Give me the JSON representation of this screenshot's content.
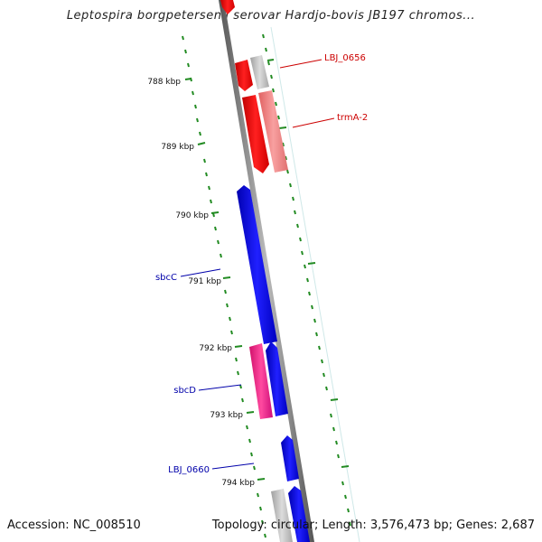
{
  "title": "Leptospira borgpetersenii serovar Hardjo-bovis JB197 chromos...",
  "accession": "Accession: NC_008510",
  "summary": "Topology: circular; Length: 3,576,473 bp; Genes: 2,687",
  "colors": {
    "backbone": "#888888",
    "tick": "#228B22",
    "gene_red": "#FF0000",
    "gene_light_red": "#F08080",
    "gene_blue": "#0000FF",
    "gene_pink": "#FF1493",
    "gene_gray": "#BBBBBB",
    "label_red": "#CC0000",
    "label_blue": "#0000AA"
  },
  "scale_labels": [
    "788 kbp",
    "789 kbp",
    "790 kbp",
    "791 kbp",
    "792 kbp",
    "793 kbp",
    "794 kbp"
  ],
  "gene_labels": [
    {
      "text": "LBJ_0656",
      "color": "label_red"
    },
    {
      "text": "trmA-2",
      "color": "label_red"
    },
    {
      "text": "sbcC",
      "color": "label_blue"
    },
    {
      "text": "sbcD",
      "color": "label_blue"
    },
    {
      "text": "LBJ_0660",
      "color": "label_blue"
    }
  ]
}
